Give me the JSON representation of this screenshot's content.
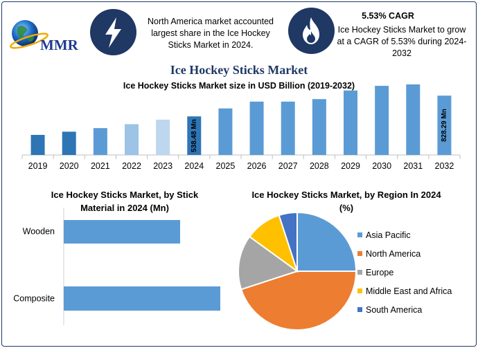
{
  "header": {
    "logo_text": "MMR",
    "info1_text": "North America market accounted largest share in the Ice Hockey Sticks Market in 2024.",
    "info2_title": "5.53% CAGR",
    "info2_text": "Ice Hockey Sticks Market to grow at a CAGR of 5.53% during 2024-2032",
    "icons": [
      "lightning-bolt-icon",
      "flame-icon"
    ],
    "colors": {
      "navy": "#1f3864",
      "bar_blue": "#5b9bd5",
      "pale_blue": "#9dc3e6",
      "lightest_blue": "#bdd7ee",
      "bar_dark": "#2e75b6"
    }
  },
  "main_title": "Ice Hockey Sticks Market",
  "chart_data": [
    {
      "type": "bar",
      "title": "Ice Hockey Sticks Market size in USD Billion (2019-2032)",
      "categories": [
        "2019",
        "2020",
        "2021",
        "2022",
        "2023",
        "2024",
        "2025",
        "2026",
        "2027",
        "2028",
        "2029",
        "2030",
        "2031",
        "2032"
      ],
      "values": [
        280,
        325,
        375,
        430,
        493,
        538.48,
        650,
        745,
        745,
        780,
        900,
        965,
        985,
        828.29
      ],
      "data_labels": [
        {
          "category": "2024",
          "text": "538.48 Mn"
        },
        {
          "category": "2032",
          "text": "828.29 Mn"
        }
      ],
      "colors": [
        "#2e75b6",
        "#2e75b6",
        "#5b9bd5",
        "#9dc3e6",
        "#bdd7ee",
        "#2e75b6",
        "#5b9bd5",
        "#5b9bd5",
        "#5b9bd5",
        "#5b9bd5",
        "#5b9bd5",
        "#5b9bd5",
        "#5b9bd5",
        "#5b9bd5"
      ],
      "grid": false
    },
    {
      "type": "bar",
      "orientation": "horizontal",
      "title": "Ice Hockey Sticks Market, by Stick Material in 2024 (Mn)",
      "categories": [
        "Wooden",
        "Composite"
      ],
      "values": [
        168,
        226
      ],
      "grid": false
    },
    {
      "type": "pie",
      "title": "Ice Hockey Sticks Market, by Region In 2024 (%)",
      "categories": [
        "Asia Pacific",
        "North America",
        "Europe",
        "Middle East and Africa",
        "South America"
      ],
      "values": [
        25,
        45,
        15,
        10,
        5
      ],
      "colors": [
        "#5b9bd5",
        "#ed7d31",
        "#a5a5a5",
        "#ffc000",
        "#4472c4"
      ],
      "legend_position": "right"
    }
  ]
}
